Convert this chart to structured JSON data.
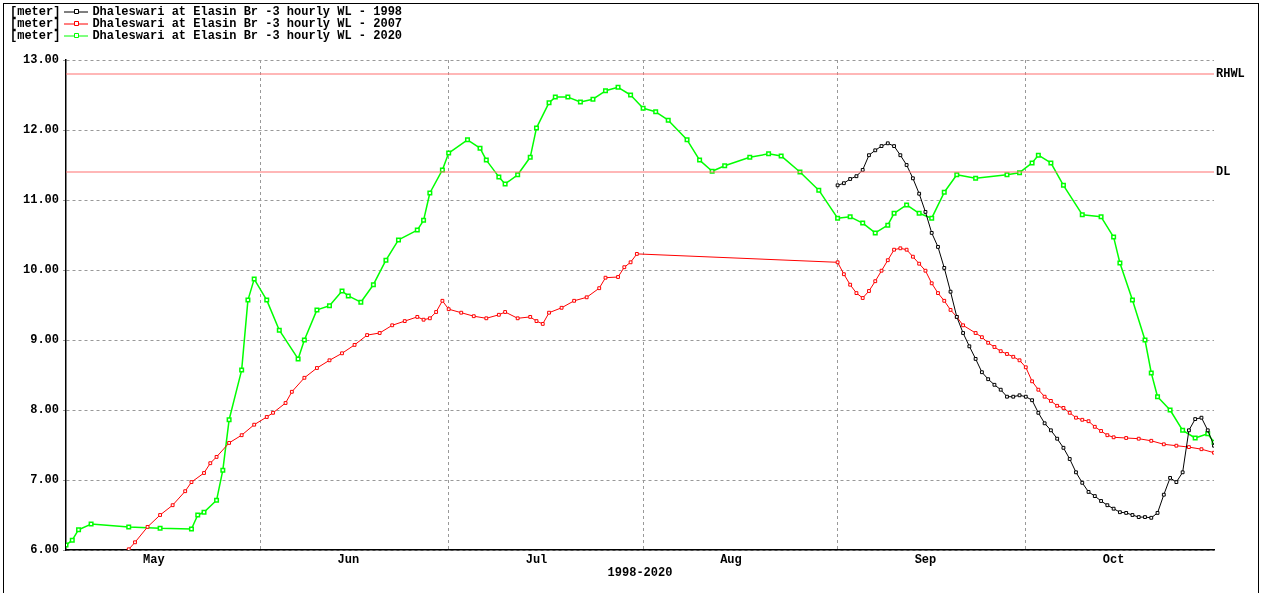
{
  "chart_data": {
    "type": "line",
    "xlabel": "1998-2020",
    "ylabel": "[meter]",
    "xlim": [
      "--05-01",
      "--10-31"
    ],
    "xticks": [
      {
        "value": "--05-15",
        "label": "May"
      },
      {
        "value": "--06-01",
        "label": null
      },
      {
        "value": "--06-15",
        "label": "Jun"
      },
      {
        "value": "--07-01",
        "label": null
      },
      {
        "value": "--07-15",
        "label": "Jul"
      },
      {
        "value": "--08-01",
        "label": null
      },
      {
        "value": "--08-15",
        "label": "Aug"
      },
      {
        "value": "--09-01",
        "label": null
      },
      {
        "value": "--09-15",
        "label": "Sep"
      },
      {
        "value": "--10-01",
        "label": null
      },
      {
        "value": "--10-15",
        "label": "Oct"
      }
    ],
    "ylim": [
      6,
      13
    ],
    "yticks": [
      {
        "value": 6,
        "label": "6.00"
      },
      {
        "value": 7,
        "label": "7.00"
      },
      {
        "value": 8,
        "label": "8.00"
      },
      {
        "value": 9,
        "label": "9.00"
      },
      {
        "value": 10,
        "label": "10.00"
      },
      {
        "value": 11,
        "label": "11.00"
      },
      {
        "value": 12,
        "label": "12.00"
      },
      {
        "value": 13,
        "label": "13.00"
      }
    ],
    "grid": true,
    "legend": "top left",
    "marker": "square",
    "line_style": "solid",
    "ref_lines": [
      {
        "axis": "y",
        "value": 12.8,
        "label": "RHWL",
        "color": "#ff7070"
      },
      {
        "axis": "y",
        "value": 11.4,
        "label": "DL",
        "color": "#ff7070"
      }
    ],
    "series": [
      {
        "name": "Dhaleswari at Elasin Br -3 hourly WL - 1998",
        "color": "#000000",
        "x": [
          "--09-01",
          "--09-02",
          "--09-03",
          "--09-04",
          "--09-05",
          "--09-06",
          "--09-07",
          "--09-08",
          "--09-09",
          "--09-10",
          "--09-11",
          "--09-12",
          "--09-13",
          "--09-14",
          "--09-15",
          "--09-16",
          "--09-17",
          "--09-18",
          "--09-19",
          "--09-20",
          "--09-21",
          "--09-22",
          "--09-23",
          "--09-24",
          "--09-25",
          "--09-26",
          "--09-27",
          "--09-28",
          "--09-29",
          "--09-30",
          "--10-01",
          "--10-02",
          "--10-03",
          "--10-04",
          "--10-05",
          "--10-06",
          "--10-07",
          "--10-08",
          "--10-09",
          "--10-10",
          "--10-11",
          "--10-12",
          "--10-13",
          "--10-14",
          "--10-15",
          "--10-16",
          "--10-17",
          "--10-18",
          "--10-19",
          "--10-20",
          "--10-21",
          "--10-22",
          "--10-23",
          "--10-24",
          "--10-25",
          "--10-26",
          "--10-27",
          "--10-28",
          "--10-29",
          "--10-30",
          "--10-31"
        ],
        "values": [
          11.21,
          11.24,
          11.3,
          11.34,
          11.43,
          11.64,
          11.71,
          11.77,
          11.81,
          11.77,
          11.64,
          11.5,
          11.31,
          11.09,
          10.83,
          10.53,
          10.33,
          10.03,
          9.69,
          9.33,
          9.1,
          8.91,
          8.73,
          8.54,
          8.44,
          8.36,
          8.29,
          8.19,
          8.19,
          8.21,
          8.19,
          8.14,
          7.96,
          7.81,
          7.71,
          7.59,
          7.46,
          7.3,
          7.11,
          6.96,
          6.83,
          6.77,
          6.7,
          6.64,
          6.59,
          6.54,
          6.53,
          6.5,
          6.47,
          6.47,
          6.46,
          6.53,
          6.79,
          7.03,
          6.97,
          7.11,
          7.71,
          7.87,
          7.89,
          7.71,
          7.49
        ]
      },
      {
        "name": "Dhaleswari at Elasin Br -3 hourly WL - 2007",
        "color": "#ff0000",
        "x": [
          "--05-11",
          "--05-12",
          "--05-14",
          "--05-16",
          "--05-18",
          "--05-20",
          "--05-21",
          "--05-23",
          "--05-24",
          "--05-25",
          "--05-27",
          "--05-29",
          "--05-31",
          "--06-02",
          "--06-03",
          "--06-05",
          "--06-06",
          "--06-08",
          "--06-10",
          "--06-12",
          "--06-14",
          "--06-16",
          "--06-18",
          "--06-20",
          "--06-22",
          "--06-24",
          "--06-26",
          "--06-27",
          "--06-28",
          "--06-29",
          "--06-30",
          "--07-01",
          "--07-03",
          "--07-05",
          "--07-07",
          "--07-09",
          "--07-10",
          "--07-12",
          "--07-14",
          "--07-15",
          "--07-16",
          "--07-17",
          "--07-19",
          "--07-21",
          "--07-23",
          "--07-25",
          "--07-26",
          "--07-28",
          "--07-29",
          "--07-30",
          "--07-31",
          "--09-01",
          "--09-02",
          "--09-03",
          "--09-04",
          "--09-05",
          "--09-06",
          "--09-07",
          "--09-08",
          "--09-09",
          "--09-10",
          "--09-11",
          "--09-12",
          "--09-13",
          "--09-14",
          "--09-15",
          "--09-16",
          "--09-17",
          "--09-18",
          "--09-19",
          "--09-20",
          "--09-21",
          "--09-23",
          "--09-24",
          "--09-25",
          "--09-26",
          "--09-27",
          "--09-28",
          "--09-29",
          "--09-30",
          "--10-01",
          "--10-02",
          "--10-03",
          "--10-04",
          "--10-05",
          "--10-06",
          "--10-07",
          "--10-08",
          "--10-09",
          "--10-10",
          "--10-11",
          "--10-12",
          "--10-13",
          "--10-14",
          "--10-15",
          "--10-17",
          "--10-19",
          "--10-21",
          "--10-23",
          "--10-25",
          "--10-27",
          "--10-29",
          "--10-31"
        ],
        "values": [
          6.01,
          6.11,
          6.33,
          6.5,
          6.64,
          6.84,
          6.97,
          7.1,
          7.24,
          7.33,
          7.53,
          7.64,
          7.79,
          7.9,
          7.96,
          8.1,
          8.26,
          8.46,
          8.6,
          8.71,
          8.81,
          8.93,
          9.07,
          9.1,
          9.21,
          9.27,
          9.33,
          9.29,
          9.31,
          9.4,
          9.56,
          9.44,
          9.39,
          9.34,
          9.31,
          9.36,
          9.4,
          9.31,
          9.33,
          9.27,
          9.23,
          9.39,
          9.46,
          9.56,
          9.61,
          9.74,
          9.89,
          9.9,
          10.04,
          10.11,
          10.23,
          10.11,
          9.94,
          9.79,
          9.67,
          9.6,
          9.7,
          9.84,
          9.99,
          10.14,
          10.29,
          10.31,
          10.29,
          10.19,
          10.09,
          9.99,
          9.81,
          9.67,
          9.56,
          9.43,
          9.33,
          9.21,
          9.1,
          9.04,
          8.96,
          8.9,
          8.84,
          8.8,
          8.76,
          8.71,
          8.61,
          8.41,
          8.29,
          8.19,
          8.13,
          8.06,
          8.03,
          7.96,
          7.89,
          7.86,
          7.84,
          7.76,
          7.7,
          7.64,
          7.61,
          7.6,
          7.59,
          7.56,
          7.51,
          7.49,
          7.47,
          7.44,
          7.39
        ]
      },
      {
        "name": "Dhaleswari at Elasin Br -3 hourly WL - 2020",
        "color": "#00ff00",
        "x": [
          "--05-01",
          "--05-02",
          "--05-03",
          "--05-05",
          "--05-11",
          "--05-16",
          "--05-21",
          "--05-22",
          "--05-23",
          "--05-25",
          "--05-26",
          "--05-27",
          "--05-29",
          "--05-30",
          "--05-31",
          "--06-02",
          "--06-04",
          "--06-07",
          "--06-08",
          "--06-10",
          "--06-12",
          "--06-14",
          "--06-15",
          "--06-17",
          "--06-19",
          "--06-21",
          "--06-23",
          "--06-26",
          "--06-27",
          "--06-28",
          "--06-30",
          "--07-01",
          "--07-04",
          "--07-06",
          "--07-07",
          "--07-09",
          "--07-10",
          "--07-12",
          "--07-14",
          "--07-15",
          "--07-17",
          "--07-18",
          "--07-20",
          "--07-22",
          "--07-24",
          "--07-26",
          "--07-28",
          "--07-30",
          "--08-01",
          "--08-03",
          "--08-05",
          "--08-08",
          "--08-10",
          "--08-12",
          "--08-14",
          "--08-18",
          "--08-21",
          "--08-23",
          "--08-26",
          "--08-29",
          "--09-01",
          "--09-03",
          "--09-05",
          "--09-07",
          "--09-09",
          "--09-10",
          "--09-12",
          "--09-14",
          "--09-16",
          "--09-18",
          "--09-20",
          "--09-23",
          "--09-28",
          "--09-30",
          "--10-02",
          "--10-03",
          "--10-05",
          "--10-07",
          "--10-10",
          "--10-13",
          "--10-15",
          "--10-16",
          "--10-18",
          "--10-20",
          "--10-21",
          "--10-22",
          "--10-24",
          "--10-26",
          "--10-28",
          "--10-30",
          "--10-31"
        ],
        "values": [
          6.07,
          6.14,
          6.29,
          6.37,
          6.33,
          6.31,
          6.3,
          6.5,
          6.54,
          6.71,
          7.14,
          7.86,
          8.57,
          9.57,
          9.87,
          9.57,
          9.14,
          8.73,
          9.0,
          9.43,
          9.49,
          9.7,
          9.63,
          9.54,
          9.79,
          10.14,
          10.43,
          10.57,
          10.71,
          11.1,
          11.43,
          11.67,
          11.86,
          11.74,
          11.57,
          11.33,
          11.23,
          11.36,
          11.61,
          12.03,
          12.39,
          12.47,
          12.47,
          12.4,
          12.44,
          12.56,
          12.61,
          12.5,
          12.31,
          12.26,
          12.14,
          11.86,
          11.57,
          11.41,
          11.49,
          11.61,
          11.66,
          11.63,
          11.4,
          11.14,
          10.74,
          10.76,
          10.67,
          10.53,
          10.64,
          10.81,
          10.93,
          10.81,
          10.74,
          11.11,
          11.36,
          11.31,
          11.36,
          11.39,
          11.53,
          11.64,
          11.53,
          11.21,
          10.79,
          10.76,
          10.47,
          10.1,
          9.57,
          9.0,
          8.53,
          8.19,
          8.0,
          7.71,
          7.6,
          7.66,
          7.54
        ]
      }
    ]
  }
}
